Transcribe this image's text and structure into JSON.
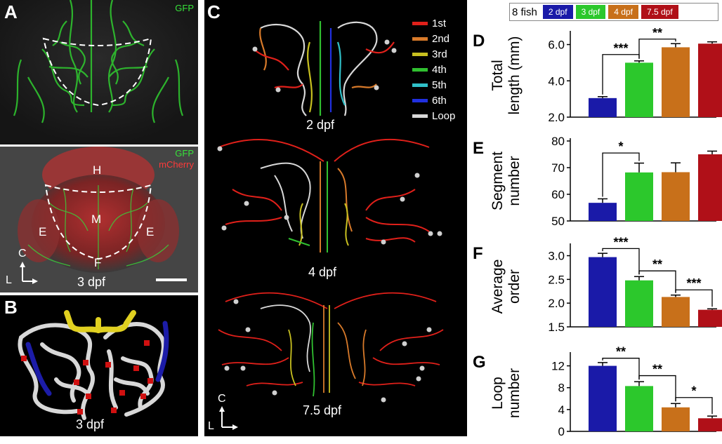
{
  "panelA": {
    "letter": "A",
    "top": {
      "channel": "GFP"
    },
    "bottom": {
      "channel1": "GFP",
      "channel2": "mCherry",
      "regions": {
        "h": "H",
        "m": "M",
        "e1": "E",
        "e2": "E",
        "f": "F"
      },
      "axis_c": "C",
      "axis_l": "L",
      "stage": "3 dpf"
    }
  },
  "panelB": {
    "letter": "B",
    "stage": "3 dpf"
  },
  "panelC": {
    "letter": "C",
    "legend": [
      {
        "label": "1st",
        "color": "#e0201a"
      },
      {
        "label": "2nd",
        "color": "#d87a2a"
      },
      {
        "label": "3rd",
        "color": "#c8c020"
      },
      {
        "label": "4th",
        "color": "#30c030"
      },
      {
        "label": "5th",
        "color": "#30c0c8"
      },
      {
        "label": "6th",
        "color": "#2030e0"
      },
      {
        "label": "Loop",
        "color": "#d8d8d8"
      }
    ],
    "stages": [
      "2 dpf",
      "4 dpf",
      "7.5 dpf"
    ],
    "axis_c": "C",
    "axis_l": "L"
  },
  "legend_top": {
    "fish": "8 fish",
    "groups": [
      {
        "label": "2 dpf",
        "color": "#1a1aa8"
      },
      {
        "label": "3 dpf",
        "color": "#2cc82c"
      },
      {
        "label": "4 dpf",
        "color": "#c8701a"
      },
      {
        "label": "7.5 dpf",
        "color": "#b01018"
      }
    ]
  },
  "chart_data": [
    {
      "letter": "D",
      "type": "bar",
      "categories": [
        "2 dpf",
        "3 dpf",
        "4 dpf",
        "7.5 dpf"
      ],
      "values": [
        3.05,
        5.0,
        5.85,
        6.05
      ],
      "errors": [
        0.08,
        0.1,
        0.2,
        0.1
      ],
      "ylabel": "Total length (mm)",
      "ylabel_lines": [
        "Total",
        "length (mm)"
      ],
      "ylim": [
        2.0,
        6.6
      ],
      "yticks": [
        2.0,
        4.0,
        6.0
      ],
      "ytick_labels": [
        "2.0",
        "4.0",
        "6.0"
      ],
      "significance": [
        {
          "from": 0,
          "to": 1,
          "level": 5.45,
          "stars": "***"
        },
        {
          "from": 1,
          "to": 2,
          "level": 6.3,
          "stars": "**"
        }
      ]
    },
    {
      "letter": "E",
      "type": "bar",
      "categories": [
        "2 dpf",
        "3 dpf",
        "4 dpf",
        "7.5 dpf"
      ],
      "values": [
        56.8,
        68.2,
        68.3,
        75.0
      ],
      "errors": [
        1.5,
        3.5,
        3.5,
        1.2
      ],
      "ylabel": "Segment number",
      "ylabel_lines": [
        "Segment",
        "number"
      ],
      "ylim": [
        50,
        80
      ],
      "yticks": [
        50,
        60,
        70,
        80
      ],
      "ytick_labels": [
        "50",
        "60",
        "70",
        "80"
      ],
      "significance": [
        {
          "from": 0,
          "to": 1,
          "level": 75.5,
          "stars": "*"
        }
      ]
    },
    {
      "letter": "F",
      "type": "bar",
      "categories": [
        "2 dpf",
        "3 dpf",
        "4 dpf",
        "7.5 dpf"
      ],
      "values": [
        2.97,
        2.48,
        2.13,
        1.86
      ],
      "errors": [
        0.08,
        0.08,
        0.04,
        0.02
      ],
      "ylabel": "Average order",
      "ylabel_lines": [
        "Average",
        "order"
      ],
      "ylim": [
        1.5,
        3.2
      ],
      "yticks": [
        1.5,
        2.0,
        2.5,
        3.0
      ],
      "ytick_labels": [
        "1.5",
        "2.0",
        "2.5",
        "3.0"
      ],
      "significance": [
        {
          "from": 0,
          "to": 1,
          "level": 3.15,
          "stars": "***"
        },
        {
          "from": 1,
          "to": 2,
          "level": 2.68,
          "stars": "**"
        },
        {
          "from": 2,
          "to": 3,
          "level": 2.28,
          "stars": "***"
        }
      ]
    },
    {
      "letter": "G",
      "type": "bar",
      "categories": [
        "2 dpf",
        "3 dpf",
        "4 dpf",
        "7.5 dpf"
      ],
      "values": [
        12.0,
        8.3,
        4.4,
        2.4
      ],
      "errors": [
        0.6,
        0.8,
        0.7,
        0.4
      ],
      "ylabel": "Loop number",
      "ylabel_lines": [
        "Loop",
        "number"
      ],
      "ylim": [
        0,
        14
      ],
      "yticks": [
        0,
        4,
        8,
        12
      ],
      "ytick_labels": [
        "0",
        "4",
        "8",
        "12"
      ],
      "significance": [
        {
          "from": 0,
          "to": 1,
          "level": 13.4,
          "stars": "**"
        },
        {
          "from": 1,
          "to": 2,
          "level": 10.2,
          "stars": "**"
        },
        {
          "from": 2,
          "to": 3,
          "level": 6.2,
          "stars": "*"
        }
      ]
    }
  ]
}
